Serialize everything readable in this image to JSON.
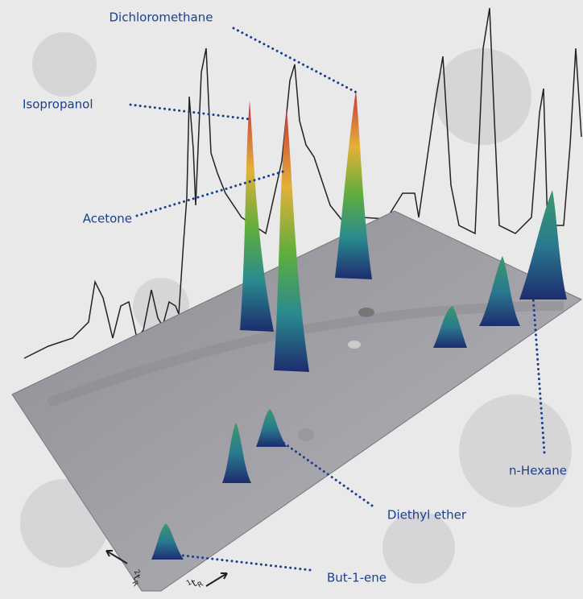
{
  "labels": {
    "dichloromethane": "Dichloromethane",
    "isopropanol": "Isopropanol",
    "acetone": "Acetone",
    "n_hexane": "n-Hexane",
    "diethyl_ether": "Diethyl ether",
    "but_1_ene": "But-1-ene"
  },
  "axes": [
    {
      "sup": "2",
      "base": "t",
      "sub": "R"
    },
    {
      "sup": "1",
      "base": "t",
      "sub": "R"
    }
  ]
}
